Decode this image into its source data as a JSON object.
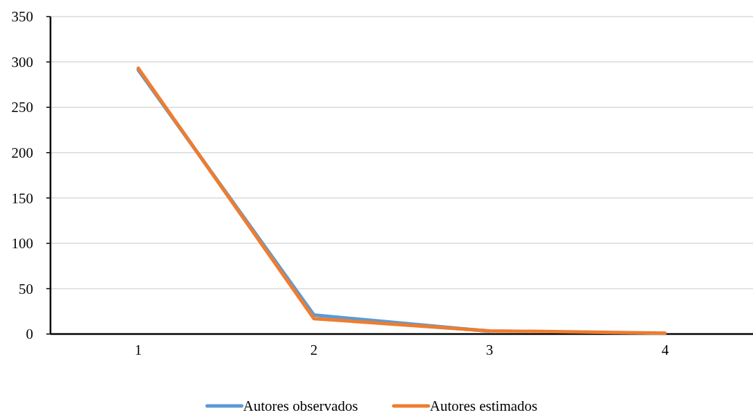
{
  "chart_data": {
    "type": "line",
    "categories": [
      "1",
      "2",
      "3",
      "4"
    ],
    "series": [
      {
        "name": "Autores observados",
        "color": "#5b9bd5",
        "values": [
          291,
          21,
          3,
          null
        ]
      },
      {
        "name": "Autores estimados",
        "color": "#ed7d31",
        "values": [
          293,
          17,
          3.5,
          1
        ]
      }
    ],
    "ylim": [
      0,
      350
    ],
    "yticks": [
      0,
      50,
      100,
      150,
      200,
      250,
      300,
      350
    ],
    "grid": "y",
    "legend": "bottom",
    "marker": "none",
    "line_style": "solid"
  }
}
